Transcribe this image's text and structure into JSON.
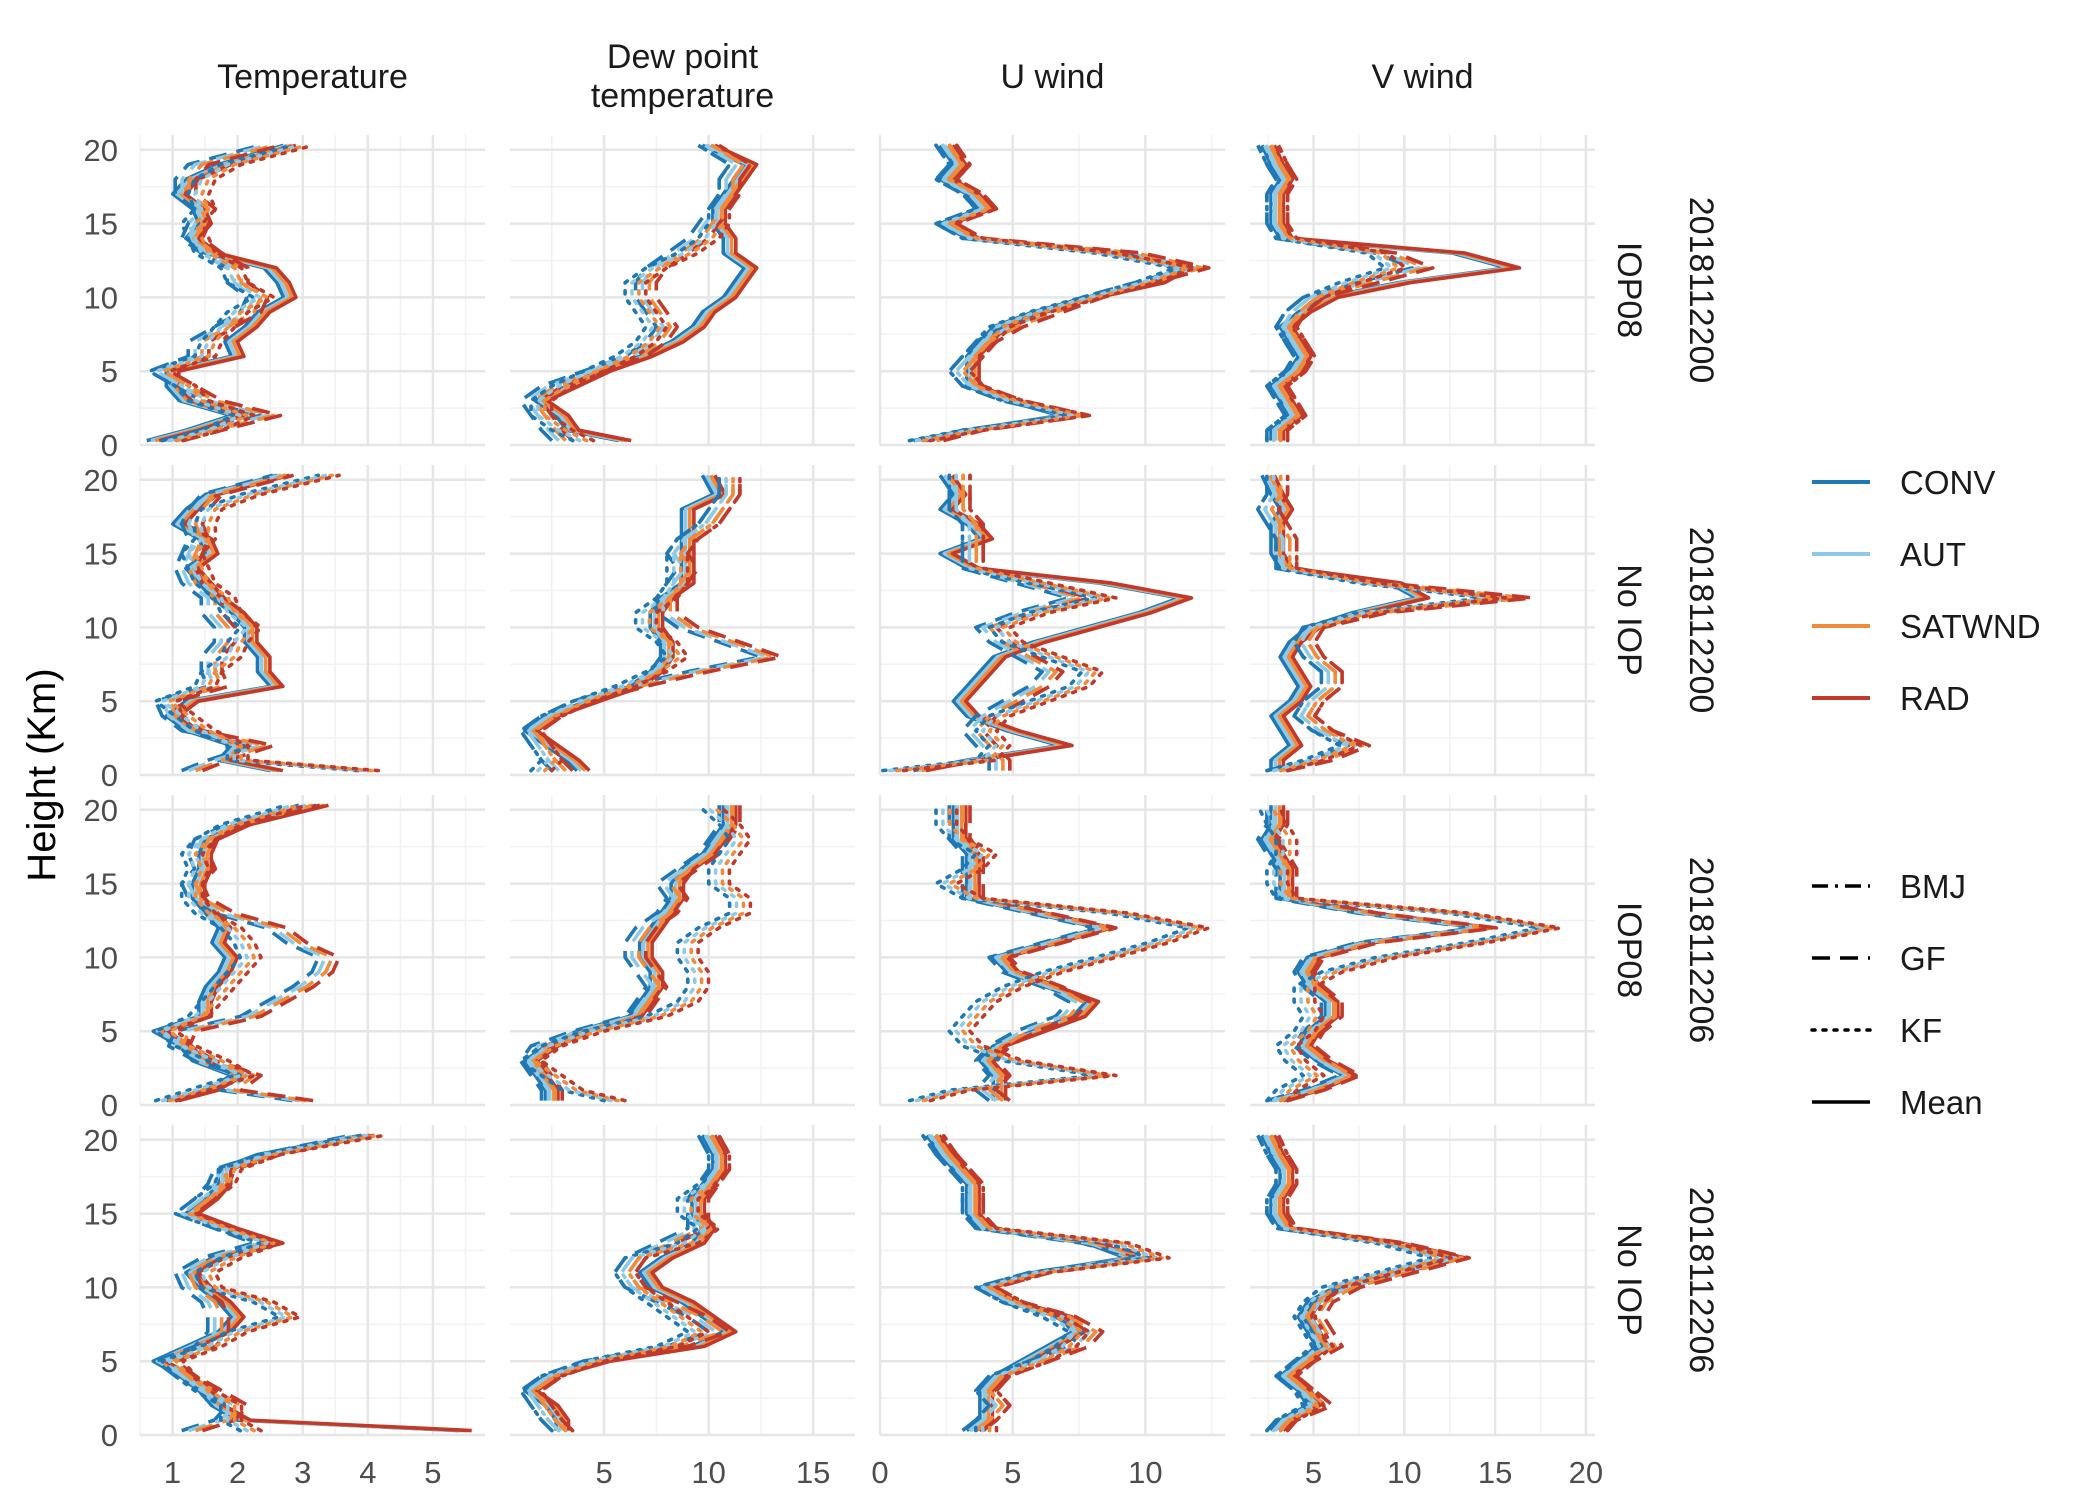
{
  "chart_data": {
    "type": "line",
    "ylabel": "Height (Km)",
    "ylim": [
      0,
      21
    ],
    "y_ticks": [
      0,
      5,
      10,
      15,
      20
    ],
    "columns": [
      {
        "key": "temp",
        "label_lines": [
          "Temperature"
        ],
        "xlim": [
          0.5,
          5.8
        ],
        "x_ticks": [
          "1",
          "2",
          "3",
          "4",
          "5"
        ]
      },
      {
        "key": "dew",
        "label_lines": [
          "Dew point",
          "temperature"
        ],
        "xlim": [
          0.5,
          17
        ],
        "x_ticks": [
          "5",
          "10",
          "15"
        ]
      },
      {
        "key": "uwind",
        "label_lines": [
          "U wind"
        ],
        "xlim": [
          0,
          13
        ],
        "x_ticks": [
          "0",
          "5",
          "10"
        ]
      },
      {
        "key": "vwind",
        "label_lines": [
          "V wind"
        ],
        "xlim": [
          1.5,
          20.5
        ],
        "x_ticks": [
          "5",
          "10",
          "15",
          "20"
        ]
      }
    ],
    "rows": [
      {
        "strip_date": "2018112200",
        "strip_iop": "IOP08"
      },
      {
        "strip_date": "2018112200",
        "strip_iop": "No IOP"
      },
      {
        "strip_date": "2018112206",
        "strip_iop": "IOP08"
      },
      {
        "strip_date": "2018112206",
        "strip_iop": "No IOP"
      }
    ],
    "heights": [
      0.3,
      1,
      2,
      3,
      4,
      5,
      6,
      7,
      8,
      9,
      10,
      11,
      12,
      13,
      14,
      15,
      16,
      17,
      18,
      19,
      20.3
    ],
    "legend": {
      "experiments": [
        {
          "name": "CONV",
          "color": "#1f77b4"
        },
        {
          "name": "AUT",
          "color": "#8ecae6"
        },
        {
          "name": "SATWND",
          "color": "#f08a3c"
        },
        {
          "name": "RAD",
          "color": "#c0392b"
        }
      ],
      "schemes": [
        {
          "name": "BMJ",
          "dash": "dashdot"
        },
        {
          "name": "GF",
          "dash": "dashed"
        },
        {
          "name": "KF",
          "dash": "dotted"
        },
        {
          "name": "Mean",
          "dash": "solid"
        }
      ]
    },
    "series": {
      "temp": [
        [
          0.7,
          1.3,
          2.0,
          1.2,
          1.0,
          1.0,
          2.0,
          1.9,
          2.2,
          2.4,
          2.8,
          2.7,
          2.5,
          1.6,
          1.3,
          1.5,
          1.4,
          1.1,
          1.3,
          1.8,
          2.8
        ],
        [
          1.0,
          1.6,
          2.5,
          1.6,
          1.2,
          0.8,
          1.4,
          1.4,
          1.8,
          2.2,
          2.3,
          2.0,
          2.0,
          1.6,
          1.3,
          1.4,
          1.5,
          1.2,
          1.2,
          1.4,
          2.5
        ],
        [
          1.0,
          1.6,
          2.1,
          1.4,
          1.2,
          0.8,
          1.5,
          1.6,
          1.8,
          2.0,
          2.4,
          2.0,
          1.9,
          1.5,
          1.4,
          1.3,
          1.5,
          1.4,
          1.5,
          1.9,
          3.0
        ],
        [
          2.6,
          1.8,
          2.0,
          1.3,
          1.0,
          1.3,
          2.6,
          2.4,
          2.4,
          2.2,
          2.2,
          2.0,
          1.7,
          1.5,
          1.3,
          1.6,
          1.5,
          1.1,
          1.3,
          1.6,
          2.7
        ],
        [
          1.3,
          1.7,
          2.4,
          1.3,
          1.0,
          0.9,
          1.7,
          1.6,
          1.6,
          1.8,
          1.8,
          1.6,
          1.6,
          1.3,
          1.2,
          1.3,
          1.4,
          1.3,
          1.4,
          1.6,
          2.7
        ],
        [
          4.0,
          2.0,
          2.0,
          1.5,
          1.2,
          0.9,
          1.5,
          1.6,
          1.9,
          2.0,
          2.2,
          1.9,
          1.8,
          1.5,
          1.4,
          1.3,
          1.5,
          1.5,
          1.6,
          2.2,
          3.4
        ],
        [
          1.0,
          1.6,
          2.0,
          1.4,
          1.2,
          0.8,
          1.5,
          1.5,
          1.6,
          1.8,
          1.9,
          1.7,
          1.8,
          1.6,
          1.4,
          1.4,
          1.5,
          1.5,
          1.6,
          2.1,
          3.3
        ],
        [
          3.0,
          1.9,
          2.2,
          1.5,
          1.1,
          1.2,
          2.2,
          2.6,
          3.0,
          3.3,
          3.4,
          2.9,
          2.6,
          1.8,
          1.4,
          1.3,
          1.5,
          1.4,
          1.5,
          2.0,
          3.1
        ],
        [
          0.9,
          1.4,
          2.1,
          1.7,
          1.2,
          0.9,
          1.4,
          1.6,
          1.8,
          2.0,
          2.2,
          2.1,
          1.9,
          1.5,
          1.3,
          1.3,
          1.4,
          1.3,
          1.5,
          1.9,
          2.9
        ],
        [
          5.5,
          2.1,
          1.7,
          1.5,
          1.2,
          0.8,
          1.3,
          1.8,
          2.0,
          1.8,
          1.5,
          1.3,
          1.7,
          2.6,
          1.9,
          1.3,
          1.6,
          1.8,
          1.8,
          2.4,
          4.0
        ],
        [
          1.3,
          1.8,
          2.0,
          1.6,
          1.2,
          0.9,
          1.5,
          1.7,
          1.7,
          1.6,
          1.3,
          1.2,
          1.6,
          2.4,
          1.8,
          1.2,
          1.5,
          1.7,
          1.8,
          2.5,
          3.9
        ],
        [
          2.2,
          1.9,
          1.9,
          1.5,
          1.2,
          1.0,
          1.6,
          2.0,
          2.8,
          2.4,
          1.6,
          1.5,
          1.9,
          2.5,
          1.8,
          1.2,
          1.5,
          1.8,
          1.9,
          2.5,
          4.1
        ]
      ],
      "dew": [
        [
          6.0,
          3.5,
          3.0,
          2.0,
          3.5,
          5.0,
          7.0,
          8.5,
          9.5,
          10.0,
          11.0,
          11.5,
          12.0,
          11.0,
          11.0,
          10.5,
          10.5,
          11.0,
          11.5,
          12.0,
          10.0
        ],
        [
          3.0,
          2.5,
          2.0,
          1.5,
          2.5,
          4.5,
          6.5,
          7.5,
          8.0,
          7.5,
          7.0,
          7.0,
          7.5,
          8.5,
          9.5,
          10.0,
          10.5,
          11.0,
          11.0,
          11.5,
          10.0
        ],
        [
          4.0,
          3.0,
          2.0,
          2.0,
          3.0,
          4.5,
          6.0,
          7.0,
          7.5,
          7.0,
          6.5,
          6.5,
          7.5,
          9.0,
          10.0,
          10.5,
          10.5,
          11.0,
          11.0,
          11.5,
          10.0
        ],
        [
          4.0,
          3.5,
          2.5,
          1.5,
          2.5,
          4.5,
          6.5,
          7.5,
          8.0,
          8.0,
          7.5,
          7.5,
          8.0,
          9.0,
          9.0,
          9.0,
          9.0,
          9.0,
          9.0,
          10.5,
          10.0
        ],
        [
          3.0,
          2.5,
          2.0,
          1.5,
          2.5,
          4.0,
          6.5,
          9.5,
          13.0,
          11.0,
          9.0,
          8.0,
          8.0,
          8.5,
          9.0,
          8.5,
          9.0,
          10.0,
          10.5,
          11.0,
          11.0
        ],
        [
          2.0,
          2.5,
          2.0,
          1.5,
          2.5,
          4.0,
          6.0,
          7.5,
          8.5,
          8.0,
          7.0,
          7.0,
          8.0,
          8.5,
          8.5,
          8.5,
          9.0,
          10.0,
          10.5,
          11.0,
          11.0
        ],
        [
          2.5,
          2.5,
          2.0,
          1.5,
          2.5,
          4.0,
          6.5,
          7.0,
          7.5,
          7.5,
          7.0,
          7.0,
          7.5,
          8.0,
          8.5,
          8.5,
          9.0,
          10.0,
          10.5,
          11.0,
          11.0
        ],
        [
          2.5,
          2.5,
          2.0,
          1.5,
          2.0,
          4.0,
          6.5,
          7.0,
          7.5,
          7.0,
          6.5,
          6.5,
          7.0,
          8.0,
          8.5,
          8.0,
          9.0,
          10.0,
          10.5,
          11.0,
          11.0
        ],
        [
          5.5,
          3.5,
          2.5,
          1.5,
          2.5,
          4.5,
          7.5,
          9.0,
          9.5,
          9.5,
          9.0,
          9.0,
          10.0,
          11.5,
          11.5,
          10.5,
          10.5,
          11.0,
          11.5,
          11.0,
          10.0
        ],
        [
          3.0,
          3.0,
          2.5,
          1.5,
          2.5,
          5.0,
          9.5,
          11.0,
          10.0,
          9.0,
          7.5,
          7.0,
          8.0,
          9.5,
          10.0,
          9.5,
          9.5,
          10.0,
          10.5,
          10.5,
          10.0
        ],
        [
          3.0,
          2.5,
          2.0,
          1.5,
          2.5,
          4.5,
          8.5,
          10.5,
          9.5,
          8.0,
          6.5,
          6.0,
          6.5,
          8.0,
          9.5,
          9.5,
          9.5,
          10.0,
          10.5,
          10.5,
          10.0
        ],
        [
          3.0,
          2.5,
          2.0,
          1.5,
          2.5,
          4.5,
          8.0,
          9.5,
          8.5,
          7.5,
          6.5,
          6.0,
          6.5,
          9.0,
          10.0,
          9.0,
          9.0,
          10.0,
          10.5,
          10.5,
          10.0
        ]
      ],
      "uwind": [
        [
          1.5,
          3.5,
          7.0,
          5.0,
          3.5,
          3.5,
          3.5,
          4.0,
          4.5,
          6.0,
          8.0,
          10.5,
          11.5,
          9.0,
          3.5,
          2.5,
          4.0,
          3.5,
          2.5,
          3.0,
          2.5
        ],
        [
          2.0,
          3.5,
          7.5,
          5.0,
          3.5,
          3.0,
          3.5,
          4.0,
          5.0,
          6.5,
          8.0,
          10.0,
          12.0,
          9.5,
          3.5,
          2.5,
          4.0,
          3.5,
          2.5,
          3.0,
          2.5
        ],
        [
          1.5,
          3.5,
          7.5,
          5.0,
          3.5,
          3.0,
          3.5,
          4.0,
          4.5,
          6.0,
          8.0,
          10.0,
          11.5,
          8.5,
          3.5,
          2.5,
          4.0,
          3.5,
          2.5,
          3.0,
          2.5
        ],
        [
          1.5,
          3.5,
          7.0,
          5.0,
          3.5,
          3.0,
          3.5,
          4.0,
          4.5,
          6.0,
          8.0,
          10.0,
          11.5,
          8.5,
          3.5,
          2.5,
          4.0,
          3.5,
          2.5,
          3.0,
          2.5
        ],
        [
          4.5,
          4.5,
          4.0,
          3.5,
          4.0,
          5.0,
          6.0,
          6.5,
          5.5,
          4.5,
          4.0,
          5.5,
          7.5,
          5.5,
          3.5,
          3.5,
          3.5,
          3.5,
          3.0,
          3.0,
          3.0
        ],
        [
          0.5,
          4.0,
          4.5,
          4.0,
          4.5,
          6.0,
          7.5,
          8.0,
          6.5,
          5.0,
          4.5,
          6.0,
          8.5,
          6.0,
          3.5,
          3.5,
          3.5,
          3.5,
          3.0,
          3.0,
          3.0
        ],
        [
          4.5,
          4.5,
          4.5,
          4.0,
          4.5,
          6.0,
          7.5,
          8.0,
          6.5,
          5.0,
          4.5,
          6.5,
          8.5,
          6.0,
          3.5,
          3.5,
          3.5,
          3.5,
          3.0,
          3.0,
          3.0
        ],
        [
          4.5,
          4.0,
          4.5,
          4.0,
          4.5,
          5.5,
          7.0,
          7.5,
          6.5,
          5.0,
          4.5,
          6.5,
          8.5,
          6.0,
          3.5,
          3.5,
          3.5,
          3.5,
          3.0,
          3.0,
          3.0
        ],
        [
          1.5,
          3.0,
          8.5,
          5.0,
          3.5,
          3.0,
          3.5,
          4.0,
          5.0,
          6.5,
          8.5,
          10.5,
          12.0,
          9.0,
          3.5,
          2.5,
          3.5,
          4.0,
          3.0,
          2.5,
          2.5
        ],
        [
          3.5,
          4.0,
          4.0,
          4.0,
          4.5,
          5.5,
          6.5,
          7.5,
          7.0,
          5.0,
          4.0,
          6.0,
          9.5,
          8.0,
          4.0,
          3.5,
          3.5,
          3.5,
          3.0,
          2.5,
          2.0
        ],
        [
          3.5,
          4.0,
          4.5,
          4.0,
          4.5,
          6.0,
          7.5,
          8.0,
          7.0,
          5.0,
          4.0,
          6.0,
          10.0,
          8.0,
          4.0,
          3.5,
          3.5,
          3.5,
          3.0,
          2.5,
          2.0
        ],
        [
          4.0,
          4.0,
          4.5,
          4.0,
          4.5,
          6.0,
          7.0,
          7.5,
          6.5,
          5.0,
          4.0,
          6.0,
          10.5,
          9.0,
          4.0,
          3.5,
          3.5,
          3.5,
          3.0,
          2.5,
          2.0
        ]
      ],
      "vwind": [
        [
          3.0,
          3.0,
          4.0,
          3.5,
          3.0,
          4.0,
          4.5,
          4.0,
          3.5,
          4.5,
          6.0,
          10.0,
          16.0,
          13.0,
          3.5,
          3.0,
          3.0,
          3.0,
          3.5,
          3.0,
          2.5
        ],
        [
          3.0,
          3.0,
          4.0,
          3.5,
          3.0,
          4.0,
          4.5,
          4.0,
          3.5,
          4.0,
          5.0,
          8.0,
          11.0,
          9.0,
          3.5,
          3.0,
          3.0,
          3.0,
          3.5,
          3.0,
          2.5
        ],
        [
          3.0,
          3.0,
          4.0,
          3.5,
          3.0,
          4.0,
          4.5,
          4.0,
          3.5,
          4.0,
          5.0,
          7.0,
          9.5,
          8.5,
          3.5,
          3.0,
          3.0,
          3.0,
          3.5,
          3.0,
          2.5
        ],
        [
          3.0,
          3.0,
          4.0,
          3.5,
          3.0,
          4.0,
          4.5,
          4.0,
          3.5,
          4.0,
          5.0,
          7.5,
          11.0,
          9.5,
          3.5,
          3.0,
          3.0,
          3.0,
          3.5,
          3.0,
          2.5
        ],
        [
          3.0,
          5.5,
          7.5,
          5.5,
          4.5,
          5.0,
          6.0,
          6.0,
          5.0,
          4.5,
          5.0,
          8.5,
          16.5,
          8.5,
          3.5,
          3.5,
          3.5,
          3.0,
          2.5,
          3.0,
          3.0
        ],
        [
          3.0,
          5.0,
          7.0,
          5.5,
          4.5,
          5.0,
          6.0,
          6.0,
          5.0,
          4.5,
          5.0,
          8.0,
          15.0,
          8.0,
          3.5,
          3.5,
          3.5,
          3.0,
          2.5,
          3.0,
          3.0
        ],
        [
          3.0,
          5.0,
          7.0,
          5.5,
          4.5,
          5.0,
          6.0,
          6.0,
          5.0,
          4.5,
          5.0,
          8.0,
          14.5,
          8.0,
          3.5,
          3.5,
          3.5,
          3.0,
          2.5,
          3.0,
          3.0
        ],
        [
          3.0,
          5.0,
          7.0,
          5.5,
          4.5,
          5.0,
          6.0,
          6.0,
          5.0,
          4.5,
          5.0,
          8.0,
          14.5,
          8.0,
          3.5,
          3.5,
          3.5,
          3.0,
          2.5,
          3.0,
          3.0
        ],
        [
          3.0,
          3.5,
          5.0,
          4.0,
          3.5,
          4.5,
          5.0,
          4.5,
          4.5,
          6.0,
          9.0,
          14.0,
          18.0,
          13.0,
          3.5,
          3.0,
          3.0,
          3.5,
          3.5,
          3.0,
          2.5
        ],
        [
          3.0,
          3.5,
          5.0,
          4.5,
          3.5,
          4.5,
          5.5,
          5.0,
          4.5,
          5.0,
          6.5,
          9.5,
          13.0,
          9.5,
          3.5,
          3.0,
          3.0,
          3.5,
          3.5,
          3.0,
          2.5
        ],
        [
          3.0,
          3.5,
          5.5,
          4.5,
          3.5,
          4.5,
          6.0,
          5.5,
          5.0,
          5.5,
          7.0,
          10.0,
          13.0,
          9.5,
          3.5,
          3.0,
          3.0,
          3.5,
          3.5,
          3.0,
          2.5
        ],
        [
          3.0,
          3.5,
          5.0,
          4.5,
          3.5,
          4.5,
          5.5,
          5.0,
          4.5,
          5.0,
          6.0,
          9.0,
          12.0,
          9.0,
          3.5,
          3.0,
          3.0,
          3.5,
          3.5,
          3.0,
          2.5
        ]
      ]
    }
  }
}
